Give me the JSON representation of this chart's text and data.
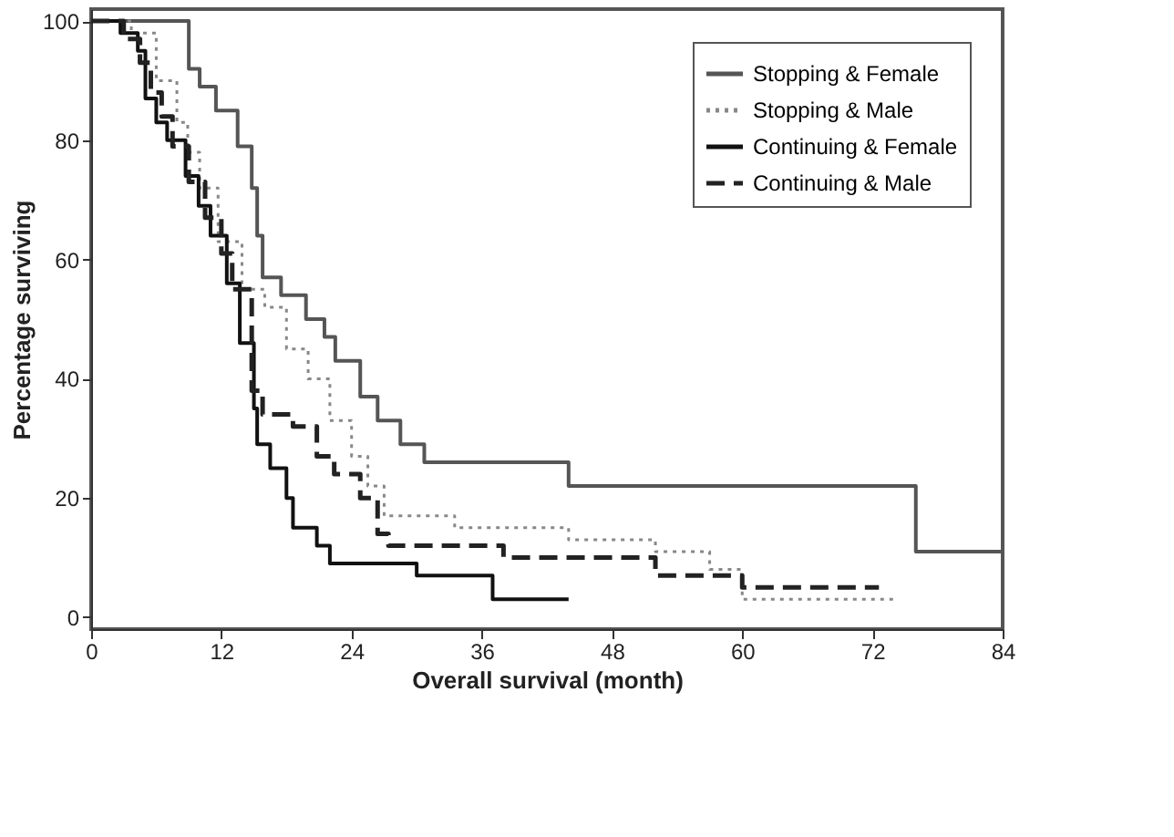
{
  "chart_data": {
    "type": "step",
    "xlabel": "Overall survival (month)",
    "ylabel": "Percentage surviving",
    "xlim": [
      0,
      84
    ],
    "xticks": [
      0,
      12,
      24,
      36,
      48,
      60,
      72,
      84
    ],
    "ylim": [
      -2,
      102
    ],
    "yticks": [
      0,
      20,
      40,
      60,
      80,
      100
    ],
    "grid": false,
    "legend": "top right",
    "series": [
      {
        "name": "Stopping & Female",
        "color": "#555555",
        "line_style": "solid",
        "x": [
          0,
          9,
          10,
          11.5,
          13.5,
          14.8,
          15.3,
          15.8,
          17.5,
          19.8,
          21.5,
          22.5,
          24.8,
          26.4,
          28.5,
          30.7,
          44,
          76,
          84
        ],
        "values": [
          100,
          92,
          89,
          85,
          79,
          72,
          64,
          57,
          54,
          50,
          47,
          43,
          37,
          33,
          29,
          26,
          22,
          11,
          11
        ]
      },
      {
        "name": "Stopping & Male",
        "color": "#888888",
        "line_style": "dotted",
        "x": [
          0,
          3.7,
          6,
          7.9,
          8.9,
          10,
          11.7,
          13.9,
          16,
          18,
          20,
          22,
          24,
          25.5,
          27,
          33.5,
          44,
          52,
          57,
          60,
          74
        ],
        "values": [
          100,
          98,
          90,
          83,
          78,
          72,
          63,
          55,
          52,
          45,
          40,
          33,
          27,
          22,
          17,
          15,
          13,
          11,
          8,
          3,
          3
        ]
      },
      {
        "name": "Continuing & Female",
        "color": "#111111",
        "line_style": "solid",
        "x": [
          0,
          2.7,
          4.3,
          5,
          6,
          7,
          8.7,
          9.9,
          11,
          12.5,
          13.7,
          15,
          15.3,
          16.5,
          18,
          18.6,
          20.8,
          22,
          30,
          37,
          44
        ],
        "values": [
          100,
          98,
          95,
          87,
          83,
          80,
          74,
          69,
          64,
          56,
          46,
          35,
          29,
          25,
          20,
          15,
          12,
          9,
          7,
          3,
          3
        ]
      },
      {
        "name": "Continuing & Male",
        "color": "#222222",
        "line_style": "dashed",
        "x": [
          0,
          3,
          4.5,
          5.5,
          6.5,
          7.5,
          9,
          10.5,
          12,
          13,
          14.8,
          15.8,
          18.6,
          20.8,
          22.4,
          24.8,
          26.4,
          27.4,
          38,
          52,
          60,
          72.6
        ],
        "values": [
          100,
          97,
          93,
          88,
          84,
          79,
          73,
          67,
          61,
          55,
          38,
          34,
          32,
          27,
          24,
          20,
          14,
          12,
          10,
          7,
          5,
          5
        ]
      }
    ]
  }
}
